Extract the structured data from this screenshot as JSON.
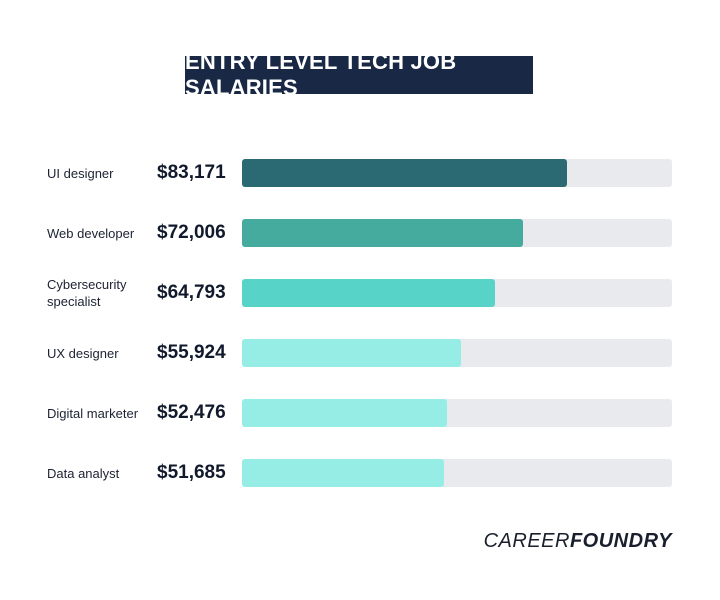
{
  "chart_data": {
    "type": "bar",
    "orientation": "horizontal",
    "title": "ENTRY LEVEL TECH JOB SALARIES",
    "categories": [
      "UI designer",
      "Web developer",
      "Cybersecurity specialist",
      "UX designer",
      "Digital marketer",
      "Data analyst"
    ],
    "values": [
      83171,
      72006,
      64793,
      55924,
      52476,
      51685
    ],
    "value_labels": [
      "$83,171",
      "$72,006",
      "$64,793",
      "$55,924",
      "$52,476",
      "$51,685"
    ],
    "colors": [
      "#2b6a72",
      "#45ab9f",
      "#57d3c7",
      "#95ede6",
      "#95ede6",
      "#95ede6"
    ],
    "track_color": "#e8eaed",
    "xlim": [
      0,
      110000
    ]
  },
  "logo": [
    "CAREER",
    "FOUNDRY"
  ]
}
